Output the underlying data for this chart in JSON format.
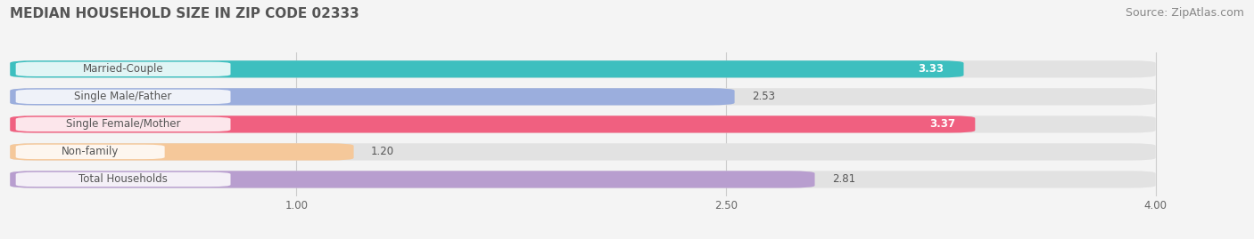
{
  "title": "MEDIAN HOUSEHOLD SIZE IN ZIP CODE 02333",
  "source": "Source: ZipAtlas.com",
  "categories": [
    "Married-Couple",
    "Single Male/Father",
    "Single Female/Mother",
    "Non-family",
    "Total Households"
  ],
  "values": [
    3.33,
    2.53,
    3.37,
    1.2,
    2.81
  ],
  "bar_colors": [
    "#3dbfbf",
    "#9baedd",
    "#f06080",
    "#f5c89a",
    "#b89ecf"
  ],
  "value_inside": [
    true,
    false,
    true,
    false,
    false
  ],
  "xlim": [
    0,
    4.3
  ],
  "xmin": 0,
  "xticks": [
    1.0,
    2.5,
    4.0
  ],
  "xtick_labels": [
    "1.00",
    "2.50",
    "4.00"
  ],
  "bar_height": 0.62,
  "title_fontsize": 11,
  "source_fontsize": 9,
  "label_fontsize": 8.5,
  "value_fontsize": 8.5,
  "tick_fontsize": 8.5,
  "background_color": "#f4f4f4",
  "bar_background_color": "#e2e2e2",
  "label_color": "#666666",
  "value_color_inside": "#ffffff",
  "value_color_outside": "#555555",
  "label_text_color": "#555555"
}
